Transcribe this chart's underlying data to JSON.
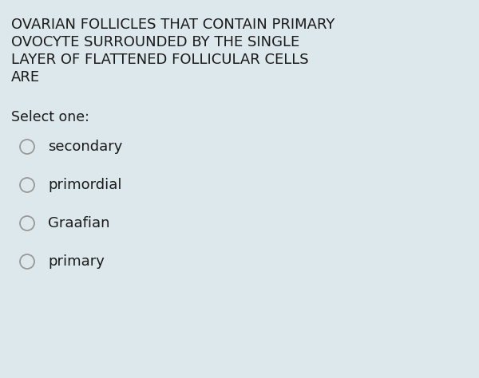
{
  "background_color": "#dde8ec",
  "question_lines": [
    "OVARIAN FOLLICLES THAT CONTAIN PRIMARY",
    "OVOCYTE SURROUNDED BY THE SINGLE",
    "LAYER OF FLATTENED FOLLICULAR CELLS",
    "ARE"
  ],
  "question_fontsize": 13.0,
  "question_font": "DejaVu Sans",
  "question_color": "#1a1a1a",
  "select_label": "Select one:",
  "select_fontsize": 12.5,
  "options": [
    "secondary",
    "primordial",
    "Graafian",
    "primary"
  ],
  "option_fontsize": 13.0,
  "option_color": "#1a1a1a",
  "circle_edge_color": "#999999",
  "circle_face_color": "#dde8ec",
  "circle_linewidth": 1.3
}
